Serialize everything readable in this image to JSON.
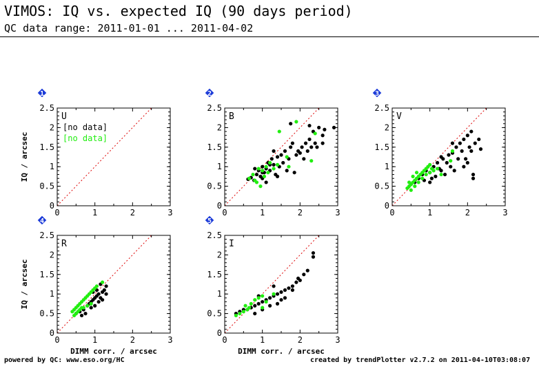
{
  "header": {
    "title": "VIMOS: IQ vs. expected IQ (90 days period)",
    "subtitle": "QC data range: 2011-01-01 ... 2011-04-02"
  },
  "footer": {
    "left": "powered by QC: www.eso.org/HC",
    "right": "created by trendPlotter v2.7.2 on 2011-04-10T03:08:07"
  },
  "colors": {
    "series_a": "#000000",
    "series_b": "#22ee11",
    "reference_line": "#dd0000",
    "badge": "#1a3ad8"
  },
  "chart_data": [
    {
      "type": "scatter",
      "badge": "1",
      "panel_label": "U",
      "xlabel": "",
      "ylabel": "IQ / arcsec",
      "xlim": [
        0,
        3
      ],
      "ylim": [
        0,
        2.5
      ],
      "x_ticks": [
        "0",
        "1",
        "2",
        "3"
      ],
      "y_ticks": [
        "0",
        "0.5",
        "1",
        "1.5",
        "2",
        "2.5"
      ],
      "reference_line": "y = x",
      "notes": [
        {
          "text": "[no data]",
          "color": "#000000"
        },
        {
          "text": "[no data]",
          "color": "#22ee11"
        }
      ],
      "series": [
        {
          "color": "#000000",
          "points": []
        },
        {
          "color": "#22ee11",
          "points": []
        }
      ]
    },
    {
      "type": "scatter",
      "badge": "2",
      "panel_label": "B",
      "xlabel": "",
      "ylabel": "",
      "xlim": [
        0,
        3
      ],
      "ylim": [
        0,
        2.5
      ],
      "x_ticks": [
        "0",
        "1",
        "2",
        "3"
      ],
      "y_ticks": [
        "0",
        "0.5",
        "1",
        "1.5",
        "2",
        "2.5"
      ],
      "reference_line": "y = x",
      "notes": [],
      "series": [
        {
          "color": "#000000",
          "points": [
            [
              0.62,
              0.68
            ],
            [
              0.7,
              0.72
            ],
            [
              0.78,
              0.65
            ],
            [
              0.85,
              0.8
            ],
            [
              0.9,
              0.9
            ],
            [
              0.95,
              0.75
            ],
            [
              1.0,
              1.0
            ],
            [
              1.05,
              0.85
            ],
            [
              1.1,
              0.95
            ],
            [
              1.15,
              1.1
            ],
            [
              1.2,
              0.9
            ],
            [
              1.25,
              1.2
            ],
            [
              1.3,
              1.05
            ],
            [
              1.35,
              0.8
            ],
            [
              1.4,
              1.25
            ],
            [
              1.45,
              1.0
            ],
            [
              1.5,
              1.3
            ],
            [
              1.55,
              1.1
            ],
            [
              1.6,
              1.4
            ],
            [
              1.65,
              0.9
            ],
            [
              1.7,
              1.2
            ],
            [
              1.75,
              1.5
            ],
            [
              1.8,
              1.6
            ],
            [
              1.85,
              0.85
            ],
            [
              1.9,
              1.3
            ],
            [
              1.95,
              1.4
            ],
            [
              2.0,
              1.35
            ],
            [
              2.05,
              1.5
            ],
            [
              2.1,
              1.2
            ],
            [
              2.15,
              1.6
            ],
            [
              2.2,
              1.4
            ],
            [
              2.25,
              1.7
            ],
            [
              2.3,
              1.5
            ],
            [
              2.35,
              1.9
            ],
            [
              2.4,
              1.6
            ],
            [
              2.5,
              2.0
            ],
            [
              2.6,
              1.8
            ],
            [
              2.65,
              1.95
            ],
            [
              2.9,
              2.0
            ],
            [
              1.0,
              0.7
            ],
            [
              1.1,
              0.6
            ],
            [
              0.8,
              0.95
            ],
            [
              1.3,
              1.4
            ],
            [
              1.4,
              0.75
            ],
            [
              1.75,
              2.1
            ],
            [
              2.25,
              2.05
            ],
            [
              2.45,
              1.5
            ],
            [
              2.6,
              1.6
            ],
            [
              1.2,
              1.05
            ],
            [
              1.0,
              0.85
            ]
          ]
        },
        {
          "color": "#22ee11",
          "points": [
            [
              0.65,
              0.7
            ],
            [
              0.75,
              0.8
            ],
            [
              0.8,
              0.65
            ],
            [
              0.9,
              0.95
            ],
            [
              1.0,
              0.9
            ],
            [
              1.1,
              1.0
            ],
            [
              1.15,
              0.85
            ],
            [
              1.2,
              1.1
            ],
            [
              1.3,
              0.95
            ],
            [
              1.4,
              1.05
            ],
            [
              0.85,
              0.6
            ],
            [
              1.05,
              0.75
            ],
            [
              0.95,
              0.5
            ],
            [
              1.7,
              1.0
            ],
            [
              1.65,
              1.25
            ],
            [
              2.3,
              1.15
            ],
            [
              2.4,
              1.85
            ],
            [
              1.45,
              1.9
            ],
            [
              1.9,
              2.15
            ]
          ]
        }
      ]
    },
    {
      "type": "scatter",
      "badge": "3",
      "panel_label": "V",
      "xlabel": "",
      "ylabel": "",
      "xlim": [
        0,
        3
      ],
      "ylim": [
        0,
        2.5
      ],
      "x_ticks": [
        "0",
        "1",
        "2",
        "3"
      ],
      "y_ticks": [
        "0",
        "0.5",
        "1",
        "1.5",
        "2",
        "2.5"
      ],
      "reference_line": "y = x",
      "notes": [],
      "series": [
        {
          "color": "#000000",
          "points": [
            [
              0.5,
              0.55
            ],
            [
              0.6,
              0.6
            ],
            [
              0.7,
              0.7
            ],
            [
              0.8,
              0.8
            ],
            [
              0.85,
              0.65
            ],
            [
              0.9,
              0.9
            ],
            [
              1.0,
              0.85
            ],
            [
              1.05,
              0.7
            ],
            [
              1.1,
              1.0
            ],
            [
              1.15,
              0.75
            ],
            [
              1.2,
              1.1
            ],
            [
              1.3,
              0.9
            ],
            [
              1.35,
              1.2
            ],
            [
              1.4,
              0.8
            ],
            [
              1.5,
              1.3
            ],
            [
              1.55,
              1.0
            ],
            [
              1.6,
              1.35
            ],
            [
              1.65,
              0.9
            ],
            [
              1.7,
              1.5
            ],
            [
              1.75,
              1.2
            ],
            [
              1.8,
              1.6
            ],
            [
              1.85,
              1.4
            ],
            [
              1.9,
              1.7
            ],
            [
              1.95,
              1.2
            ],
            [
              2.0,
              1.8
            ],
            [
              2.05,
              1.5
            ],
            [
              2.1,
              1.9
            ],
            [
              2.15,
              0.8
            ],
            [
              2.2,
              1.6
            ],
            [
              2.3,
              1.7
            ],
            [
              1.45,
              1.1
            ],
            [
              1.25,
              0.95
            ],
            [
              2.0,
              1.1
            ],
            [
              1.6,
              1.6
            ],
            [
              1.9,
              1.0
            ],
            [
              2.1,
              1.4
            ],
            [
              2.15,
              0.7
            ],
            [
              2.35,
              1.45
            ],
            [
              1.0,
              0.6
            ],
            [
              1.3,
              1.25
            ]
          ]
        },
        {
          "color": "#22ee11",
          "points": [
            [
              0.4,
              0.45
            ],
            [
              0.45,
              0.5
            ],
            [
              0.5,
              0.55
            ],
            [
              0.55,
              0.6
            ],
            [
              0.6,
              0.65
            ],
            [
              0.65,
              0.7
            ],
            [
              0.7,
              0.75
            ],
            [
              0.75,
              0.8
            ],
            [
              0.8,
              0.85
            ],
            [
              0.85,
              0.9
            ],
            [
              0.9,
              0.95
            ],
            [
              0.95,
              1.0
            ],
            [
              1.0,
              1.05
            ],
            [
              1.05,
              0.95
            ],
            [
              1.1,
              0.9
            ],
            [
              0.6,
              0.5
            ],
            [
              0.7,
              0.6
            ],
            [
              0.8,
              0.7
            ],
            [
              0.9,
              0.8
            ],
            [
              1.0,
              0.85
            ],
            [
              0.45,
              0.6
            ],
            [
              0.55,
              0.75
            ],
            [
              0.65,
              0.85
            ],
            [
              1.2,
              0.95
            ],
            [
              1.3,
              0.8
            ],
            [
              1.55,
              1.15
            ],
            [
              1.6,
              1.4
            ],
            [
              0.5,
              0.4
            ]
          ]
        }
      ]
    },
    {
      "type": "scatter",
      "badge": "4",
      "panel_label": "R",
      "xlabel": "DIMM corr. / arcsec",
      "ylabel": "IQ / arcsec",
      "xlim": [
        0,
        3
      ],
      "ylim": [
        0,
        2.5
      ],
      "x_ticks": [
        "0",
        "1",
        "2",
        "3"
      ],
      "y_ticks": [
        "0",
        "0.5",
        "1",
        "1.5",
        "2",
        "2.5"
      ],
      "reference_line": "y = x",
      "notes": [],
      "series": [
        {
          "color": "#000000",
          "points": [
            [
              0.5,
              0.5
            ],
            [
              0.6,
              0.55
            ],
            [
              0.7,
              0.6
            ],
            [
              0.8,
              0.7
            ],
            [
              0.85,
              0.75
            ],
            [
              0.9,
              0.8
            ],
            [
              0.95,
              0.85
            ],
            [
              1.0,
              0.9
            ],
            [
              1.05,
              0.95
            ],
            [
              1.1,
              1.0
            ],
            [
              1.15,
              0.9
            ],
            [
              1.2,
              1.05
            ],
            [
              1.25,
              1.1
            ],
            [
              1.3,
              1.2
            ],
            [
              0.75,
              0.5
            ],
            [
              0.9,
              0.65
            ],
            [
              1.0,
              0.7
            ],
            [
              1.1,
              0.8
            ],
            [
              1.2,
              0.85
            ],
            [
              1.3,
              1.0
            ],
            [
              0.65,
              0.45
            ],
            [
              0.95,
              1.05
            ],
            [
              1.05,
              1.1
            ],
            [
              1.15,
              1.25
            ]
          ]
        },
        {
          "color": "#22ee11",
          "points": [
            [
              0.4,
              0.55
            ],
            [
              0.45,
              0.6
            ],
            [
              0.5,
              0.65
            ],
            [
              0.55,
              0.7
            ],
            [
              0.6,
              0.75
            ],
            [
              0.65,
              0.8
            ],
            [
              0.7,
              0.85
            ],
            [
              0.75,
              0.9
            ],
            [
              0.8,
              0.95
            ],
            [
              0.85,
              1.0
            ],
            [
              0.9,
              1.05
            ],
            [
              0.95,
              1.1
            ],
            [
              1.0,
              1.15
            ],
            [
              1.05,
              1.2
            ],
            [
              0.5,
              0.5
            ],
            [
              0.6,
              0.6
            ],
            [
              0.7,
              0.65
            ],
            [
              0.8,
              0.7
            ],
            [
              0.9,
              0.75
            ],
            [
              0.55,
              0.55
            ],
            [
              0.65,
              0.65
            ],
            [
              1.2,
              1.3
            ],
            [
              0.45,
              0.45
            ]
          ]
        }
      ]
    },
    {
      "type": "scatter",
      "badge": "5",
      "panel_label": "I",
      "xlabel": "DIMM corr. / arcsec",
      "ylabel": "",
      "xlim": [
        0,
        3
      ],
      "ylim": [
        0,
        2.5
      ],
      "x_ticks": [
        "0",
        "1",
        "2",
        "3"
      ],
      "y_ticks": [
        "0",
        "0.5",
        "1",
        "1.5",
        "2",
        "2.5"
      ],
      "reference_line": "y = x",
      "notes": [],
      "series": [
        {
          "color": "#000000",
          "points": [
            [
              0.3,
              0.5
            ],
            [
              0.4,
              0.55
            ],
            [
              0.5,
              0.6
            ],
            [
              0.6,
              0.6
            ],
            [
              0.7,
              0.65
            ],
            [
              0.8,
              0.7
            ],
            [
              0.9,
              0.75
            ],
            [
              1.0,
              0.8
            ],
            [
              1.1,
              0.85
            ],
            [
              1.2,
              0.9
            ],
            [
              1.3,
              0.95
            ],
            [
              1.4,
              1.0
            ],
            [
              1.5,
              1.05
            ],
            [
              1.6,
              1.1
            ],
            [
              1.7,
              1.15
            ],
            [
              1.8,
              1.2
            ],
            [
              1.9,
              1.3
            ],
            [
              1.95,
              1.4
            ],
            [
              2.0,
              1.35
            ],
            [
              2.1,
              1.5
            ],
            [
              2.2,
              1.6
            ],
            [
              2.35,
              1.95
            ],
            [
              2.35,
              2.05
            ],
            [
              0.8,
              0.5
            ],
            [
              1.0,
              0.6
            ],
            [
              1.2,
              0.7
            ],
            [
              1.4,
              0.75
            ],
            [
              1.6,
              0.9
            ],
            [
              0.9,
              0.95
            ],
            [
              1.3,
              1.2
            ],
            [
              1.5,
              0.85
            ],
            [
              1.8,
              1.1
            ]
          ]
        },
        {
          "color": "#22ee11",
          "points": [
            [
              0.3,
              0.45
            ],
            [
              0.4,
              0.5
            ],
            [
              0.5,
              0.55
            ],
            [
              0.6,
              0.6
            ],
            [
              0.7,
              0.75
            ],
            [
              0.8,
              0.85
            ],
            [
              0.9,
              0.9
            ],
            [
              1.0,
              0.95
            ],
            [
              1.1,
              0.8
            ],
            [
              0.55,
              0.7
            ],
            [
              0.65,
              0.65
            ],
            [
              1.3,
              1.0
            ],
            [
              1.0,
              0.65
            ]
          ]
        }
      ]
    }
  ]
}
